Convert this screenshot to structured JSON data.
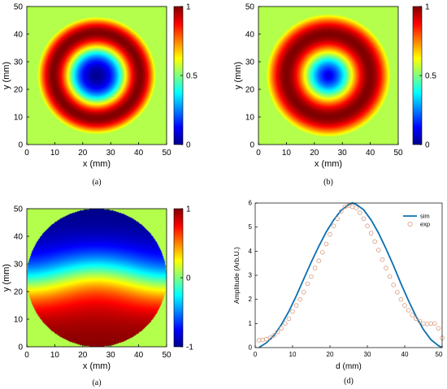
{
  "colors": {
    "sim_line": "#0b6fb0",
    "exp_marker": "#d99a7c",
    "plane_field": "#88f07a"
  },
  "panels": [
    {
      "id": "a_top",
      "caption": "(a)",
      "colormap": "jet",
      "xlabel": "x (mm)",
      "ylabel": "y (mm)",
      "xticks": [
        "0",
        "10",
        "20",
        "30",
        "40",
        "50"
      ],
      "yticks": [
        "0",
        "10",
        "20",
        "30",
        "40",
        "50"
      ],
      "cbar_ticks": [
        "0",
        "0.5",
        "1"
      ],
      "field": {
        "type": "rings",
        "center_mm": [
          25,
          25
        ],
        "dip_radius_mm": 0,
        "peak_radius_mm": 15.5,
        "width_mm": 7.5,
        "background": 0.55
      }
    },
    {
      "id": "b",
      "caption": "(b)",
      "colormap": "jet",
      "xlabel": "x (mm)",
      "ylabel": "y (mm)",
      "xticks": [
        "0",
        "10",
        "20",
        "30",
        "40",
        "50"
      ],
      "yticks": [
        "0",
        "10",
        "20",
        "30",
        "40",
        "50"
      ],
      "cbar_ticks": [
        "0",
        "0.5",
        "1"
      ],
      "field": {
        "type": "rings",
        "center_mm": [
          25,
          25
        ],
        "dip_radius_mm": 0,
        "peak_radius_mm": 15,
        "width_mm": 9.5,
        "background": 0.55
      }
    },
    {
      "id": "a_bottom",
      "caption": "(a)",
      "colormap": "jet",
      "xlabel": "x (mm)",
      "ylabel": "y (mm)",
      "xticks": [
        "0",
        "10",
        "20",
        "30",
        "40",
        "50"
      ],
      "yticks": [
        "0",
        "10",
        "20",
        "30",
        "40",
        "50"
      ],
      "cbar_ticks": [
        "-1",
        "0",
        "1"
      ],
      "field": {
        "type": "phase",
        "aperture_radius_mm": 25,
        "outside_value": 0.1
      }
    }
  ],
  "chart_data": {
    "type": "line",
    "title": "",
    "caption": "(d)",
    "xlabel": "d (mm)",
    "ylabel": "Amplitude (Arb.U.)",
    "xlim": [
      0,
      50
    ],
    "ylim": [
      0,
      6
    ],
    "xticks": [
      "0",
      "10",
      "20",
      "30",
      "40",
      "50"
    ],
    "yticks": [
      "0",
      "1",
      "2",
      "3",
      "4",
      "5",
      "6"
    ],
    "legend": {
      "position": "top-right",
      "entries": [
        "sim",
        "exp"
      ]
    },
    "series": [
      {
        "name": "sim",
        "style": "line",
        "x": [
          1,
          3,
          5,
          7,
          9,
          11,
          13,
          15,
          17,
          19,
          21,
          23,
          25,
          26,
          27,
          29,
          31,
          33,
          35,
          37,
          39,
          41,
          43,
          45,
          47,
          49,
          50
        ],
        "y": [
          0.0,
          0.2,
          0.5,
          0.95,
          1.5,
          2.15,
          2.85,
          3.55,
          4.2,
          4.8,
          5.3,
          5.7,
          5.93,
          6.0,
          5.95,
          5.72,
          5.3,
          4.75,
          4.1,
          3.4,
          2.65,
          1.95,
          1.3,
          0.75,
          0.33,
          0.08,
          0.0
        ]
      },
      {
        "name": "exp",
        "style": "markers",
        "x": [
          1,
          2,
          3,
          4,
          5,
          6,
          7,
          8,
          9,
          10,
          11,
          12,
          13,
          14,
          15,
          16,
          17,
          18,
          19,
          20,
          21,
          22,
          23,
          24,
          25,
          26,
          27,
          28,
          29,
          30,
          31,
          32,
          33,
          34,
          35,
          36,
          37,
          38,
          39,
          40,
          41,
          42,
          43,
          44,
          45,
          46,
          47,
          48,
          49,
          50
        ],
        "y": [
          0.3,
          0.32,
          0.35,
          0.4,
          0.5,
          0.65,
          0.8,
          1.0,
          1.2,
          1.5,
          1.75,
          2.0,
          2.3,
          2.65,
          2.95,
          3.3,
          3.6,
          3.95,
          4.3,
          4.7,
          5.05,
          5.35,
          5.65,
          5.85,
          5.9,
          5.85,
          5.8,
          5.6,
          5.35,
          5.05,
          4.75,
          4.4,
          4.05,
          3.65,
          3.3,
          2.95,
          2.6,
          2.3,
          2.0,
          1.75,
          1.55,
          1.35,
          1.2,
          1.1,
          1.0,
          0.98,
          1.0,
          1.0,
          0.8,
          0.4
        ]
      }
    ]
  }
}
